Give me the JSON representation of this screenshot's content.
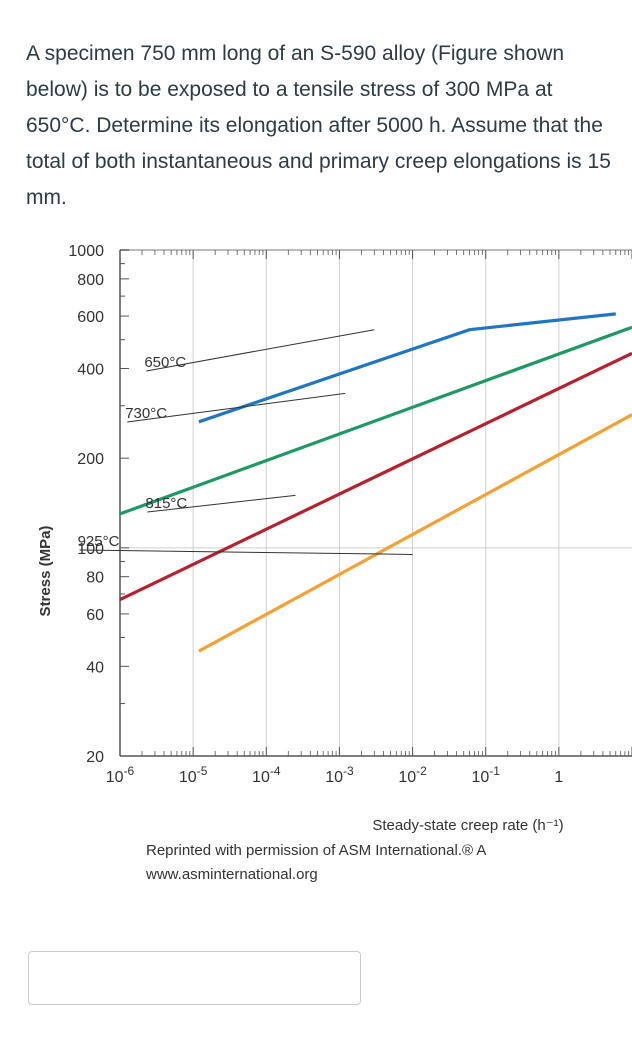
{
  "question": {
    "text": "A specimen 750 mm long of an S-590 alloy (Figure shown below) is to be exposed to a tensile stress of 300 MPa at 650°C. Determine its elongation after 5000 h.  Assume that the total of both instantaneous and primary creep elongations is 15 mm."
  },
  "chart_data": {
    "type": "line",
    "title": "",
    "xlabel": "Steady-state creep rate (h⁻¹)",
    "ylabel": "Stress (MPa)",
    "xscale": "log",
    "yscale": "log",
    "xlim": [
      1e-06,
      10
    ],
    "ylim": [
      20,
      1000
    ],
    "x_ticks": [
      {
        "value": 1e-06,
        "base": "10",
        "exp": "-6"
      },
      {
        "value": 1e-05,
        "base": "10",
        "exp": "-5"
      },
      {
        "value": 0.0001,
        "base": "10",
        "exp": "-4"
      },
      {
        "value": 0.001,
        "base": "10",
        "exp": "-3"
      },
      {
        "value": 0.01,
        "base": "10",
        "exp": "-2"
      },
      {
        "value": 0.1,
        "base": "10",
        "exp": "-1"
      },
      {
        "value": 1,
        "base": "1",
        "exp": ""
      }
    ],
    "y_ticks": [
      {
        "value": 1000,
        "label": "1000"
      },
      {
        "value": 800,
        "label": "800"
      },
      {
        "value": 600,
        "label": "600"
      },
      {
        "value": 400,
        "label": "400"
      },
      {
        "value": 200,
        "label": "200"
      },
      {
        "value": 100,
        "label": "100"
      },
      {
        "value": 80,
        "label": "80"
      },
      {
        "value": 60,
        "label": "60"
      },
      {
        "value": 40,
        "label": "40"
      },
      {
        "value": 20,
        "label": "20"
      }
    ],
    "grid": true,
    "series": [
      {
        "name": "650°C",
        "color": "#1f77c4",
        "points": [
          [
            1.2e-05,
            265
          ],
          [
            0.06,
            540
          ],
          [
            6,
            610
          ]
        ]
      },
      {
        "name": "730°C",
        "color": "#1d9a63",
        "points": [
          [
            1e-06,
            130
          ],
          [
            10,
            550
          ]
        ]
      },
      {
        "name": "815°C",
        "color": "#b8202f",
        "points": [
          [
            1e-06,
            67
          ],
          [
            10,
            450
          ]
        ]
      },
      {
        "name": "925°C",
        "color": "#f5a031",
        "points": [
          [
            1.2e-05,
            45
          ],
          [
            10,
            280
          ]
        ]
      }
    ],
    "annotations": [
      {
        "text": "650°C",
        "series": "650°C"
      },
      {
        "text": "730°C",
        "series": "730°C"
      },
      {
        "text": "815°C",
        "series": "815°C"
      },
      {
        "text": "925°C",
        "series": "925°C"
      }
    ],
    "credit_lines": [
      "Reprinted with permission of ASM International.® A",
      "www.asminternational.org"
    ]
  },
  "answer": {
    "value": "",
    "placeholder": ""
  }
}
